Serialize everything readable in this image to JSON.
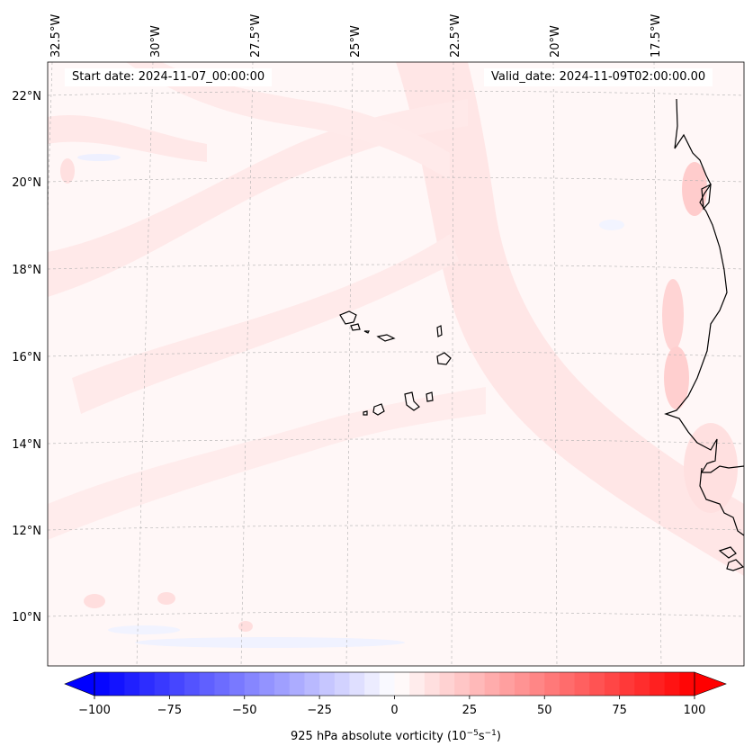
{
  "map": {
    "title_start": "Start date: 2024-11-07_00:00:00",
    "title_valid": "Valid_date: 2024-11-09T02:00:00.00",
    "longitude_labels": [
      "32.5°W",
      "30°W",
      "27.5°W",
      "25°W",
      "22.5°W",
      "20°W",
      "17.5°W"
    ],
    "latitude_labels": [
      "22°N",
      "20°N",
      "18°N",
      "16°N",
      "14°N",
      "12°N",
      "10°N"
    ],
    "field": "925 hPa absolute vorticity"
  },
  "colorbar": {
    "label_text": "925 hPa absolute vorticity (10",
    "label_exp1": "−5",
    "label_mid": "s",
    "label_exp2": "−1",
    "label_close": ")",
    "ticks": [
      "−100",
      "−75",
      "−50",
      "−25",
      "0",
      "25",
      "50",
      "75",
      "100"
    ],
    "tick_values": [
      -100,
      -75,
      -50,
      -25,
      0,
      25,
      50,
      75,
      100
    ],
    "min": -100,
    "max": 100,
    "step": 5,
    "neg_color": "#0000ff",
    "pos_color": "#ff0000",
    "mid_color": "#ffffff"
  }
}
